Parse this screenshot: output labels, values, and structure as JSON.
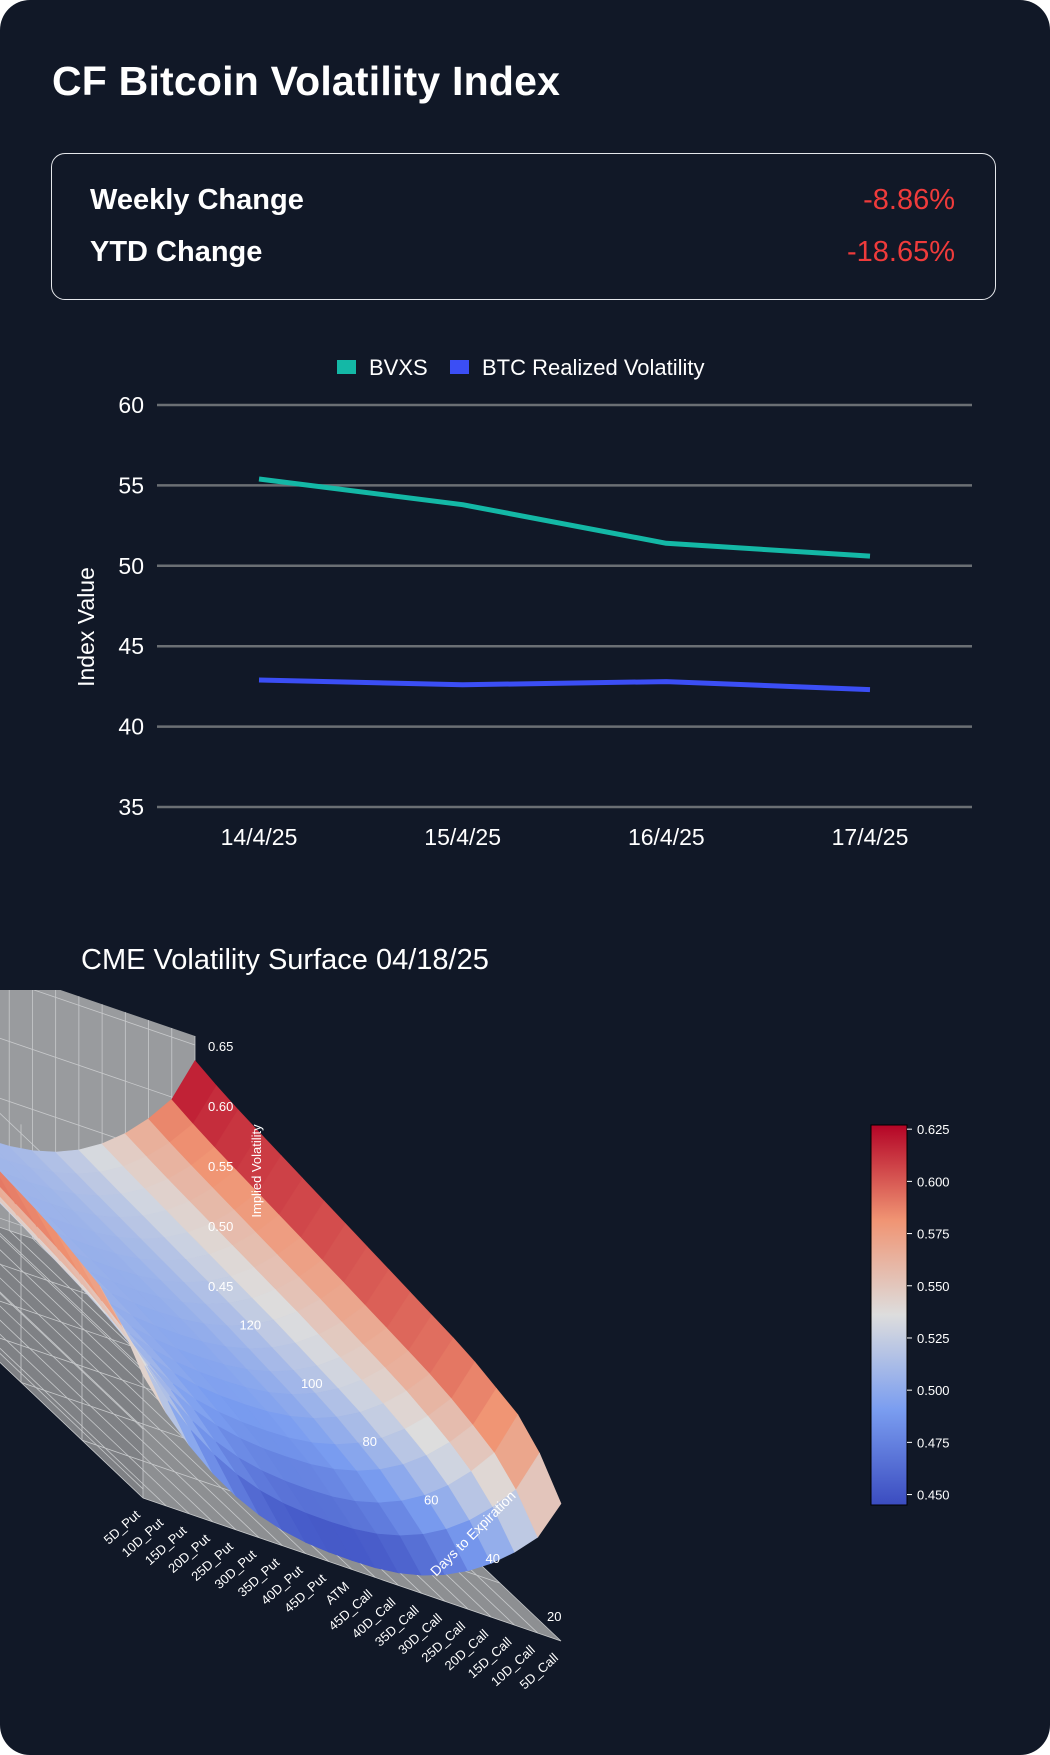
{
  "title": "CF Bitcoin Volatility Index",
  "stats": {
    "weekly_label": "Weekly Change",
    "weekly_value": "-8.86%",
    "ytd_label": "YTD Change",
    "ytd_value": "-18.65%",
    "negative_color": "#ef3b3b"
  },
  "chart_data": [
    {
      "type": "line",
      "title": "",
      "xlabel": "",
      "ylabel": "Index Value",
      "categories": [
        "14/4/25",
        "15/4/25",
        "16/4/25",
        "17/4/25"
      ],
      "yticks": [
        35,
        40,
        45,
        50,
        55,
        60
      ],
      "ylim": [
        35,
        60
      ],
      "grid": true,
      "legend_position": "top-center",
      "series": [
        {
          "name": "BVXS",
          "color": "#14b8a6",
          "values": [
            55.4,
            53.8,
            51.4,
            50.6
          ]
        },
        {
          "name": "BTC Realized Volatility",
          "color": "#3b4ef5",
          "values": [
            42.9,
            42.6,
            42.8,
            42.3
          ]
        }
      ]
    },
    {
      "type": "surface",
      "title": "CME Volatility Surface 04/18/25",
      "xlabel": "",
      "ylabel": "Days to Expiration",
      "zlabel": "Implied Volatility",
      "x_categories": [
        "5D_Put",
        "10D_Put",
        "15D_Put",
        "20D_Put",
        "25D_Put",
        "30D_Put",
        "35D_Put",
        "40D_Put",
        "45D_Put",
        "ATM",
        "45D_Call",
        "40D_Call",
        "35D_Call",
        "30D_Call",
        "25D_Call",
        "20D_Call",
        "15D_Call",
        "10D_Call",
        "5D_Call"
      ],
      "y_ticks": [
        20,
        40,
        60,
        80,
        100,
        120
      ],
      "z_ticks": [
        0.45,
        0.5,
        0.55,
        0.6,
        0.65
      ],
      "zlim": [
        0.45,
        0.65
      ],
      "colorbar_ticks": [
        0.45,
        0.475,
        0.5,
        0.525,
        0.55,
        0.575,
        0.6,
        0.625
      ],
      "colormap": "coolwarm",
      "days": [
        7,
        14,
        21,
        28,
        35,
        42,
        49,
        56,
        63,
        70,
        77,
        84,
        91,
        98,
        105,
        112,
        119,
        126
      ],
      "atm_vol": [
        0.45,
        0.465,
        0.475,
        0.485,
        0.49,
        0.495,
        0.498,
        0.5,
        0.502,
        0.504,
        0.505,
        0.506,
        0.507,
        0.508,
        0.509,
        0.51,
        0.511,
        0.512
      ],
      "wing_vol": [
        0.545,
        0.57,
        0.585,
        0.59,
        0.595,
        0.598,
        0.6,
        0.602,
        0.604,
        0.606,
        0.608,
        0.61,
        0.612,
        0.614,
        0.616,
        0.618,
        0.621,
        0.625
      ]
    }
  ]
}
